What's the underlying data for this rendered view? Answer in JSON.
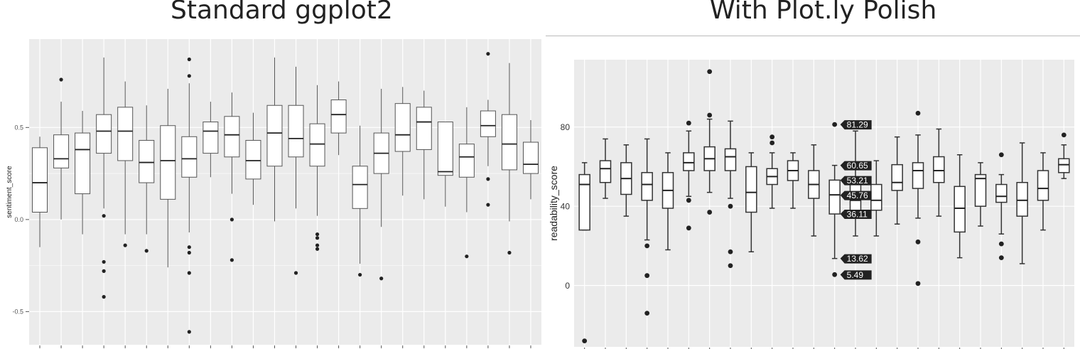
{
  "titles": {
    "left": "Standard ggplot2",
    "right": "With Plot.ly Polish"
  },
  "modebar": [
    {
      "name": "camera-icon",
      "glyph": "▣"
    },
    {
      "name": "zoom-icon",
      "glyph": "⌕"
    },
    {
      "name": "pan-icon",
      "glyph": "✛"
    },
    {
      "name": "zoom-in-icon",
      "glyph": "⊞"
    },
    {
      "name": "zoom-out-icon",
      "glyph": "⊟"
    },
    {
      "name": "autoscale-icon",
      "glyph": "⤢"
    },
    {
      "name": "home-icon",
      "glyph": "⌂"
    },
    {
      "name": "spike-lines-icon",
      "glyph": "◀"
    },
    {
      "name": "compare-hover-icon",
      "glyph": "═"
    },
    {
      "name": "plotly-logo-icon",
      "glyph": "▁▃▅▇"
    }
  ],
  "colors": {
    "panel_bg": "#ebebeb",
    "grid": "#ffffff",
    "box_fill": "#ffffff",
    "box_stroke": "#333333",
    "tooltip_bg": "#222222",
    "modebar_icon": "#b5bcc7",
    "modebar_active": "#447adb"
  },
  "chart_data": [
    {
      "type": "box",
      "title": "Standard ggplot2",
      "xlabel": "",
      "ylabel": "sentiment_score",
      "ylim": [
        -0.68,
        0.98
      ],
      "yticks": [
        -0.5,
        0.0,
        0.5
      ],
      "ytick_labels": [
        "-0.5",
        "0.0",
        "0.5"
      ],
      "grid": true,
      "boxes": [
        {
          "q1": 0.04,
          "med": 0.2,
          "q3": 0.39,
          "lo": -0.15,
          "hi": 0.45,
          "out": []
        },
        {
          "q1": 0.28,
          "med": 0.33,
          "q3": 0.46,
          "lo": 0.0,
          "hi": 0.64,
          "out": [
            0.76
          ]
        },
        {
          "q1": 0.14,
          "med": 0.38,
          "q3": 0.47,
          "lo": -0.08,
          "hi": 0.59,
          "out": []
        },
        {
          "q1": 0.36,
          "med": 0.48,
          "q3": 0.57,
          "lo": 0.06,
          "hi": 0.88,
          "out": [
            0.02,
            -0.23,
            -0.28,
            -0.42
          ]
        },
        {
          "q1": 0.32,
          "med": 0.48,
          "q3": 0.61,
          "lo": -0.08,
          "hi": 0.75,
          "out": [
            -0.14
          ]
        },
        {
          "q1": 0.2,
          "med": 0.31,
          "q3": 0.43,
          "lo": -0.08,
          "hi": 0.62,
          "out": [
            -0.17
          ]
        },
        {
          "q1": 0.11,
          "med": 0.32,
          "q3": 0.51,
          "lo": -0.26,
          "hi": 0.71,
          "out": []
        },
        {
          "q1": 0.23,
          "med": 0.33,
          "q3": 0.45,
          "lo": -0.07,
          "hi": 0.74,
          "out": [
            0.87,
            0.78,
            -0.15,
            -0.18,
            -0.29,
            -0.61
          ]
        },
        {
          "q1": 0.36,
          "med": 0.48,
          "q3": 0.53,
          "lo": 0.23,
          "hi": 0.64,
          "out": []
        },
        {
          "q1": 0.34,
          "med": 0.46,
          "q3": 0.56,
          "lo": 0.14,
          "hi": 0.69,
          "out": [
            0.0,
            -0.22
          ]
        },
        {
          "q1": 0.22,
          "med": 0.32,
          "q3": 0.43,
          "lo": 0.08,
          "hi": 0.58,
          "out": []
        },
        {
          "q1": 0.29,
          "med": 0.47,
          "q3": 0.62,
          "lo": -0.01,
          "hi": 0.88,
          "out": []
        },
        {
          "q1": 0.34,
          "med": 0.44,
          "q3": 0.62,
          "lo": 0.06,
          "hi": 0.83,
          "out": [
            -0.29
          ]
        },
        {
          "q1": 0.29,
          "med": 0.41,
          "q3": 0.52,
          "lo": 0.02,
          "hi": 0.73,
          "out": [
            -0.08,
            -0.1,
            -0.14,
            -0.16
          ]
        },
        {
          "q1": 0.47,
          "med": 0.57,
          "q3": 0.65,
          "lo": 0.35,
          "hi": 0.75,
          "out": []
        },
        {
          "q1": 0.06,
          "med": 0.19,
          "q3": 0.29,
          "lo": -0.24,
          "hi": 0.51,
          "out": [
            -0.3
          ]
        },
        {
          "q1": 0.25,
          "med": 0.36,
          "q3": 0.47,
          "lo": -0.04,
          "hi": 0.71,
          "out": [
            -0.32
          ]
        },
        {
          "q1": 0.37,
          "med": 0.46,
          "q3": 0.63,
          "lo": 0.13,
          "hi": 0.72,
          "out": []
        },
        {
          "q1": 0.38,
          "med": 0.53,
          "q3": 0.61,
          "lo": 0.11,
          "hi": 0.7,
          "out": []
        },
        {
          "q1": 0.24,
          "med": 0.26,
          "q3": 0.53,
          "lo": 0.07,
          "hi": 0.53,
          "out": []
        },
        {
          "q1": 0.23,
          "med": 0.34,
          "q3": 0.41,
          "lo": 0.04,
          "hi": 0.61,
          "out": [
            -0.2
          ]
        },
        {
          "q1": 0.45,
          "med": 0.51,
          "q3": 0.59,
          "lo": 0.29,
          "hi": 0.65,
          "out": [
            0.9,
            0.22,
            0.08
          ]
        },
        {
          "q1": 0.27,
          "med": 0.41,
          "q3": 0.57,
          "lo": -0.01,
          "hi": 0.85,
          "out": [
            -0.18
          ]
        },
        {
          "q1": 0.25,
          "med": 0.3,
          "q3": 0.42,
          "lo": 0.11,
          "hi": 0.54,
          "out": []
        }
      ]
    },
    {
      "type": "box",
      "title": "With Plot.ly Polish",
      "xlabel": "",
      "ylabel": "readability_score",
      "ylim": [
        -31,
        114
      ],
      "yticks": [
        0,
        40,
        80
      ],
      "ytick_labels": [
        "0",
        "40",
        "80"
      ],
      "grid": true,
      "boxes": [
        {
          "q1": 28,
          "med": 51,
          "q3": 56,
          "lo": 28,
          "hi": 62,
          "out": [
            -28
          ]
        },
        {
          "q1": 52,
          "med": 59,
          "q3": 63,
          "lo": 44,
          "hi": 74,
          "out": []
        },
        {
          "q1": 46,
          "med": 54,
          "q3": 62,
          "lo": 35,
          "hi": 71,
          "out": []
        },
        {
          "q1": 43,
          "med": 51,
          "q3": 57,
          "lo": 23,
          "hi": 74,
          "out": [
            20,
            5,
            -14
          ]
        },
        {
          "q1": 39,
          "med": 48,
          "q3": 57,
          "lo": 18,
          "hi": 67,
          "out": []
        },
        {
          "q1": 58,
          "med": 62,
          "q3": 67,
          "lo": 45,
          "hi": 78,
          "out": [
            82,
            43,
            29
          ]
        },
        {
          "q1": 58,
          "med": 64,
          "q3": 70,
          "lo": 47,
          "hi": 84,
          "out": [
            108,
            86,
            37
          ]
        },
        {
          "q1": 58,
          "med": 65,
          "q3": 69,
          "lo": 44,
          "hi": 83,
          "out": [
            40,
            17,
            10
          ]
        },
        {
          "q1": 37,
          "med": 47,
          "q3": 60,
          "lo": 17,
          "hi": 67,
          "out": []
        },
        {
          "q1": 51,
          "med": 55,
          "q3": 59,
          "lo": 39,
          "hi": 67,
          "out": [
            75,
            72
          ]
        },
        {
          "q1": 53,
          "med": 58,
          "q3": 63,
          "lo": 39,
          "hi": 67,
          "out": []
        },
        {
          "q1": 44,
          "med": 51,
          "q3": 58,
          "lo": 25,
          "hi": 71,
          "out": []
        },
        {
          "q1": 36.11,
          "med": 45.76,
          "q3": 53.21,
          "lo": 13.62,
          "hi": 60.65,
          "out": [
            81.29,
            5.49
          ]
        },
        {
          "q1": 36,
          "med": 43,
          "q3": 51,
          "lo": 25,
          "hi": 78,
          "out": []
        },
        {
          "q1": 38,
          "med": 43,
          "q3": 51,
          "lo": 25,
          "hi": 63,
          "out": []
        },
        {
          "q1": 48,
          "med": 52,
          "q3": 61,
          "lo": 31,
          "hi": 75,
          "out": []
        },
        {
          "q1": 49,
          "med": 58,
          "q3": 62,
          "lo": 34,
          "hi": 76,
          "out": [
            87,
            22,
            1
          ]
        },
        {
          "q1": 52,
          "med": 58,
          "q3": 65,
          "lo": 35,
          "hi": 79,
          "out": []
        },
        {
          "q1": 27,
          "med": 39,
          "q3": 50,
          "lo": 14,
          "hi": 66,
          "out": []
        },
        {
          "q1": 40,
          "med": 54,
          "q3": 56,
          "lo": 30,
          "hi": 62,
          "out": []
        },
        {
          "q1": 42,
          "med": 45,
          "q3": 51,
          "lo": 26,
          "hi": 56,
          "out": [
            66,
            21,
            14
          ]
        },
        {
          "q1": 35,
          "med": 43,
          "q3": 52,
          "lo": 11,
          "hi": 72,
          "out": []
        },
        {
          "q1": 43,
          "med": 49,
          "q3": 58,
          "lo": 28,
          "hi": 67,
          "out": []
        },
        {
          "q1": 57,
          "med": 61,
          "q3": 64,
          "lo": 54,
          "hi": 71,
          "out": [
            76
          ]
        }
      ],
      "hover_labels": [
        "81.29",
        "60.65",
        "53.21",
        "45.76",
        "36.11",
        "13.62",
        "5.49"
      ]
    }
  ]
}
